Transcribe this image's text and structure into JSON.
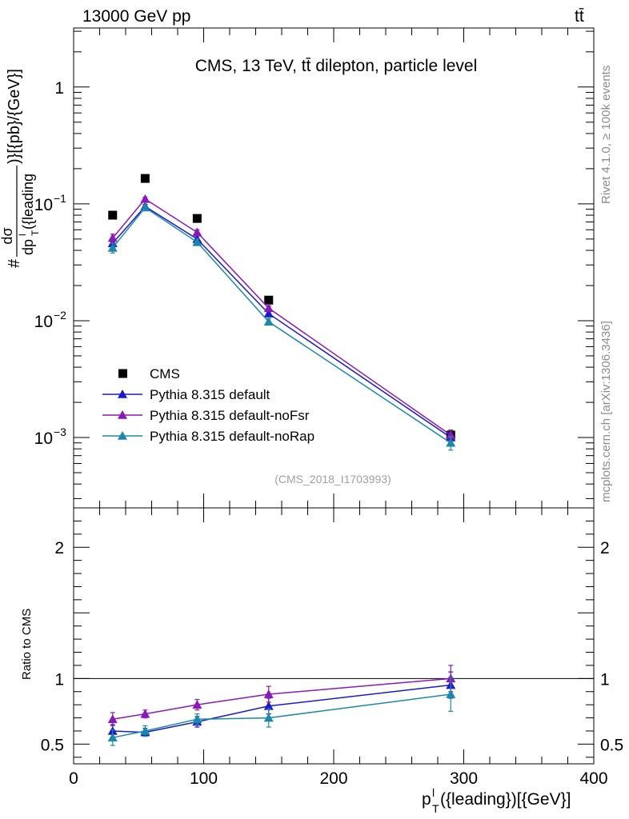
{
  "header": {
    "energy_label": "13000 GeV pp",
    "process_label": "tt̄"
  },
  "side_labels": {
    "rivet": "Rivet 4.1.0, ≥ 100k events",
    "mcplots": "mcplots.cern.ch [arXiv:1306.3436]"
  },
  "chart_data": [
    {
      "type": "line",
      "panel": "main",
      "title": "CMS, 13 TeV, tt̄ dilepton, particle level",
      "analysis_id": "(CMS_2018_I1703993)",
      "ylabel": "#dσ/dp_T^l({leading})}[{pb}/{GeV}]",
      "ylabel_num": "dσ",
      "ylabel_den": "dp",
      "ylabel_sup": "l",
      "ylabel_sub": "T",
      "ylabel_den_tail": "({leading",
      "ylabel_prefix": "#",
      "ylabel_suffix": ")}[{pb}/{GeV}]",
      "yscale": "log",
      "ylim": [
        0.00025,
        3.2
      ],
      "xlim": [
        0,
        400
      ],
      "grid": false,
      "legend_position": "lower-left",
      "yticks": [
        {
          "value": 1,
          "label": "1"
        },
        {
          "value": 0.1,
          "label": "10",
          "exp": "−1"
        },
        {
          "value": 0.01,
          "label": "10",
          "exp": "−2"
        },
        {
          "value": 0.001,
          "label": "10",
          "exp": "−3"
        }
      ],
      "series": [
        {
          "name": "CMS",
          "marker": "square",
          "color": "#000000",
          "x": [
            30,
            55,
            95,
            150,
            290
          ],
          "y": [
            0.08,
            0.165,
            0.075,
            0.015,
            0.00105
          ]
        },
        {
          "name": "Pythia 8.315 default",
          "marker": "triangle",
          "color": "#1a1acc",
          "x": [
            30,
            55,
            95,
            150,
            290
          ],
          "y": [
            0.046,
            0.095,
            0.05,
            0.0115,
            0.001
          ],
          "err": [
            0.004,
            0.004,
            0.003,
            0.0006,
            0.0001
          ]
        },
        {
          "name": "Pythia 8.315 default-noFsr",
          "marker": "triangle",
          "color": "#8b18b8",
          "x": [
            30,
            55,
            95,
            150,
            290
          ],
          "y": [
            0.051,
            0.11,
            0.057,
            0.0128,
            0.00105
          ],
          "err": [
            0.004,
            0.004,
            0.003,
            0.0006,
            0.00011
          ]
        },
        {
          "name": "Pythia 8.315 default-noRap",
          "marker": "triangle",
          "color": "#1a88aa",
          "x": [
            30,
            55,
            95,
            150,
            290
          ],
          "y": [
            0.042,
            0.093,
            0.047,
            0.0098,
            0.0009
          ],
          "err": [
            0.004,
            0.004,
            0.003,
            0.0006,
            0.00012
          ]
        }
      ]
    },
    {
      "type": "line",
      "panel": "ratio",
      "ylabel": "Ratio to CMS",
      "xlabel": "p_T^l({leading})[{GeV}]",
      "xlabel_main": "p",
      "xlabel_sup": "l",
      "xlabel_sub": "T",
      "xlabel_tail": "({leading})[{GeV}]",
      "ylim": [
        0.35,
        2.3
      ],
      "xlim": [
        0,
        400
      ],
      "reference_line": 1,
      "yticks": [
        {
          "value": 0.5,
          "label": "0.5"
        },
        {
          "value": 1,
          "label": "1"
        },
        {
          "value": 2,
          "label": "2"
        }
      ],
      "xticks": [
        {
          "value": 0,
          "label": "0"
        },
        {
          "value": 100,
          "label": "100"
        },
        {
          "value": 200,
          "label": "200"
        },
        {
          "value": 300,
          "label": "300"
        },
        {
          "value": 400,
          "label": "400"
        }
      ],
      "series": [
        {
          "name": "Pythia 8.315 default",
          "color": "#1a1acc",
          "x": [
            30,
            55,
            95,
            150,
            290
          ],
          "y": [
            0.6,
            0.59,
            0.67,
            0.79,
            0.95
          ],
          "err": [
            0.05,
            0.03,
            0.04,
            0.06,
            0.1
          ]
        },
        {
          "name": "Pythia 8.315 default-noFsr",
          "color": "#8b18b8",
          "x": [
            30,
            55,
            95,
            150,
            290
          ],
          "y": [
            0.69,
            0.73,
            0.8,
            0.88,
            1.0
          ],
          "err": [
            0.05,
            0.03,
            0.04,
            0.06,
            0.1
          ]
        },
        {
          "name": "Pythia 8.315 default-noRap",
          "color": "#1a88aa",
          "x": [
            30,
            55,
            95,
            150,
            290
          ],
          "y": [
            0.55,
            0.6,
            0.69,
            0.7,
            0.88
          ],
          "err": [
            0.06,
            0.04,
            0.04,
            0.07,
            0.13
          ]
        }
      ]
    }
  ]
}
